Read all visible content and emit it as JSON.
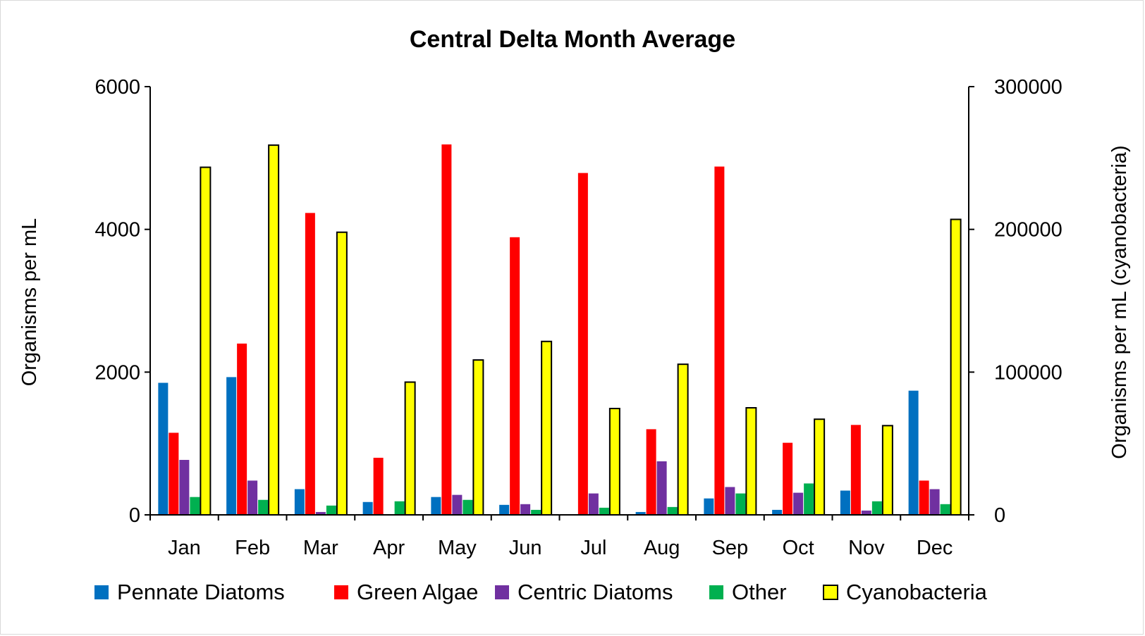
{
  "chart_data": {
    "type": "bar",
    "title": "Central Delta Month Average",
    "xlabel": "",
    "ylabel": "Organisms per mL",
    "y2label": "Organisms per mL (cyanobacteria)",
    "ylim": [
      0,
      6000
    ],
    "y2lim": [
      0,
      300000
    ],
    "yticks": [
      "0",
      "2000",
      "4000",
      "6000"
    ],
    "y2ticks": [
      "0",
      "100000",
      "200000",
      "300000"
    ],
    "categories": [
      "Jan",
      "Feb",
      "Mar",
      "Apr",
      "May",
      "Jun",
      "Jul",
      "Aug",
      "Sep",
      "Oct",
      "Nov",
      "Dec"
    ],
    "series": [
      {
        "name": "Pennate Diatoms",
        "color": "#0070C0",
        "axis": "left",
        "values": [
          1850,
          1930,
          360,
          180,
          250,
          140,
          0,
          40,
          230,
          70,
          340,
          1740
        ]
      },
      {
        "name": "Green Algae",
        "color": "#FF0000",
        "axis": "left",
        "values": [
          1150,
          2400,
          4230,
          800,
          5190,
          3890,
          4790,
          1200,
          4880,
          1010,
          1260,
          480
        ]
      },
      {
        "name": "Centric Diatoms",
        "color": "#7030A0",
        "axis": "left",
        "values": [
          770,
          480,
          40,
          0,
          280,
          150,
          300,
          750,
          390,
          310,
          60,
          360
        ]
      },
      {
        "name": "Other",
        "color": "#00B050",
        "axis": "left",
        "values": [
          250,
          210,
          130,
          190,
          210,
          70,
          100,
          110,
          300,
          440,
          190,
          150
        ]
      },
      {
        "name": "Cyanobacteria",
        "color": "#FFFF00",
        "outline": "#000000",
        "axis": "right",
        "values": [
          243500,
          259000,
          198000,
          93000,
          108500,
          121500,
          74500,
          105500,
          75000,
          67000,
          62500,
          207000
        ]
      }
    ],
    "legend_position": "bottom",
    "grid": false
  }
}
